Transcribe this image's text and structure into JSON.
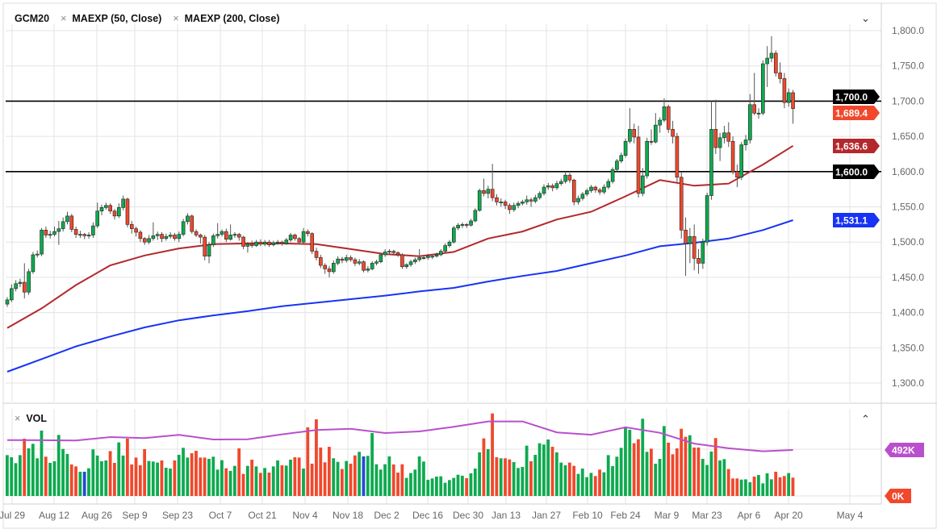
{
  "header": {
    "symbol": "GCM20",
    "studies": [
      "MAEXP (50, Close)",
      "MAEXP (200, Close)"
    ],
    "remove_icon": "close-x-icon",
    "collapse_icon": "chevron-down-icon"
  },
  "volume_pane": {
    "title": "VOL",
    "remove_icon": "close-x-icon",
    "collapse_icon": "chevron-up-icon"
  },
  "chart_data": {
    "type": "candlestick",
    "symbol": "GCM20",
    "x_tick_labels": [
      "Jul 29",
      "Aug 12",
      "Aug 26",
      "Sep 9",
      "Sep 23",
      "Oct 7",
      "Oct 21",
      "Nov 4",
      "Nov 18",
      "Dec 2",
      "Dec 16",
      "Dec 30",
      "Jan 13",
      "Jan 27",
      "Feb 10",
      "Feb 24",
      "Mar 9",
      "Mar 23",
      "Apr 6",
      "Apr 20",
      "May 4"
    ],
    "y_ticks": [
      1300,
      1350,
      1400,
      1450,
      1500,
      1550,
      1600,
      1650,
      1700,
      1750,
      1800
    ],
    "y_tick_labels": [
      "1,300.0",
      "1,350.0",
      "1,400.0",
      "1,450.0",
      "1,500.0",
      "1,550.0",
      "1,600.0",
      "1,650.0",
      "1,700.0",
      "1,750.0",
      "1,800.0"
    ],
    "ylim": [
      1270,
      1830
    ],
    "grid": true,
    "candles_format": [
      "open",
      "high",
      "low",
      "close"
    ],
    "candles": [
      [
        1412,
        1422,
        1408,
        1418
      ],
      [
        1418,
        1440,
        1415,
        1434
      ],
      [
        1434,
        1446,
        1430,
        1441
      ],
      [
        1441,
        1448,
        1436,
        1443
      ],
      [
        1443,
        1470,
        1420,
        1429
      ],
      [
        1429,
        1462,
        1425,
        1458
      ],
      [
        1458,
        1486,
        1455,
        1482
      ],
      [
        1482,
        1488,
        1478,
        1483
      ],
      [
        1483,
        1520,
        1480,
        1517
      ],
      [
        1517,
        1522,
        1506,
        1510
      ],
      [
        1510,
        1516,
        1505,
        1511
      ],
      [
        1511,
        1522,
        1508,
        1515
      ],
      [
        1515,
        1530,
        1496,
        1519
      ],
      [
        1519,
        1535,
        1515,
        1529
      ],
      [
        1529,
        1543,
        1525,
        1537
      ],
      [
        1537,
        1540,
        1514,
        1518
      ],
      [
        1518,
        1522,
        1506,
        1511
      ],
      [
        1511,
        1516,
        1506,
        1511
      ],
      [
        1511,
        1513,
        1504,
        1509
      ],
      [
        1509,
        1514,
        1505,
        1510
      ],
      [
        1510,
        1528,
        1506,
        1523
      ],
      [
        1523,
        1556,
        1520,
        1544
      ],
      [
        1544,
        1553,
        1538,
        1549
      ],
      [
        1549,
        1556,
        1546,
        1552
      ],
      [
        1552,
        1555,
        1540,
        1544
      ],
      [
        1544,
        1547,
        1532,
        1537
      ],
      [
        1537,
        1555,
        1534,
        1549
      ],
      [
        1549,
        1566,
        1545,
        1561
      ],
      [
        1561,
        1563,
        1521,
        1525
      ],
      [
        1525,
        1530,
        1512,
        1519
      ],
      [
        1519,
        1522,
        1508,
        1514
      ],
      [
        1514,
        1517,
        1500,
        1505
      ],
      [
        1505,
        1507,
        1496,
        1500
      ],
      [
        1500,
        1510,
        1497,
        1505
      ],
      [
        1505,
        1528,
        1502,
        1509
      ],
      [
        1509,
        1515,
        1503,
        1511
      ],
      [
        1511,
        1514,
        1500,
        1505
      ],
      [
        1505,
        1512,
        1502,
        1508
      ],
      [
        1508,
        1514,
        1505,
        1510
      ],
      [
        1510,
        1513,
        1502,
        1505
      ],
      [
        1505,
        1515,
        1500,
        1511
      ],
      [
        1511,
        1533,
        1508,
        1529
      ],
      [
        1529,
        1541,
        1525,
        1537
      ],
      [
        1537,
        1539,
        1512,
        1515
      ],
      [
        1515,
        1518,
        1507,
        1510
      ],
      [
        1510,
        1512,
        1498,
        1507
      ],
      [
        1507,
        1510,
        1474,
        1480
      ],
      [
        1480,
        1500,
        1470,
        1496
      ],
      [
        1496,
        1512,
        1493,
        1509
      ],
      [
        1509,
        1527,
        1505,
        1511
      ],
      [
        1511,
        1518,
        1508,
        1515
      ],
      [
        1515,
        1519,
        1500,
        1504
      ],
      [
        1504,
        1525,
        1502,
        1510
      ],
      [
        1510,
        1514,
        1506,
        1511
      ],
      [
        1511,
        1513,
        1502,
        1507
      ],
      [
        1507,
        1509,
        1490,
        1494
      ],
      [
        1494,
        1500,
        1485,
        1497
      ],
      [
        1497,
        1502,
        1492,
        1495
      ],
      [
        1495,
        1503,
        1493,
        1500
      ],
      [
        1500,
        1504,
        1494,
        1497
      ],
      [
        1497,
        1503,
        1494,
        1500
      ],
      [
        1500,
        1503,
        1493,
        1496
      ],
      [
        1496,
        1502,
        1494,
        1499
      ],
      [
        1499,
        1503,
        1496,
        1500
      ],
      [
        1500,
        1502,
        1495,
        1498
      ],
      [
        1498,
        1506,
        1496,
        1503
      ],
      [
        1503,
        1513,
        1500,
        1510
      ],
      [
        1510,
        1512,
        1502,
        1505
      ],
      [
        1505,
        1507,
        1497,
        1500
      ],
      [
        1500,
        1520,
        1498,
        1515
      ],
      [
        1515,
        1518,
        1508,
        1512
      ],
      [
        1512,
        1514,
        1483,
        1487
      ],
      [
        1487,
        1492,
        1474,
        1478
      ],
      [
        1478,
        1482,
        1463,
        1467
      ],
      [
        1467,
        1470,
        1455,
        1462
      ],
      [
        1462,
        1466,
        1450,
        1458
      ],
      [
        1458,
        1474,
        1455,
        1470
      ],
      [
        1470,
        1480,
        1467,
        1476
      ],
      [
        1476,
        1479,
        1470,
        1474
      ],
      [
        1474,
        1482,
        1471,
        1478
      ],
      [
        1478,
        1481,
        1472,
        1475
      ],
      [
        1475,
        1478,
        1466,
        1470
      ],
      [
        1470,
        1476,
        1467,
        1472
      ],
      [
        1472,
        1474,
        1457,
        1460
      ],
      [
        1460,
        1466,
        1457,
        1462
      ],
      [
        1462,
        1473,
        1460,
        1470
      ],
      [
        1470,
        1475,
        1467,
        1472
      ],
      [
        1472,
        1485,
        1470,
        1482
      ],
      [
        1482,
        1490,
        1479,
        1486
      ],
      [
        1486,
        1490,
        1483,
        1487
      ],
      [
        1487,
        1489,
        1481,
        1485
      ],
      [
        1485,
        1487,
        1479,
        1482
      ],
      [
        1482,
        1484,
        1462,
        1465
      ],
      [
        1465,
        1470,
        1462,
        1468
      ],
      [
        1468,
        1475,
        1465,
        1472
      ],
      [
        1472,
        1478,
        1469,
        1475
      ],
      [
        1475,
        1490,
        1472,
        1478
      ],
      [
        1478,
        1481,
        1475,
        1478
      ],
      [
        1478,
        1483,
        1475,
        1480
      ],
      [
        1480,
        1483,
        1476,
        1480
      ],
      [
        1480,
        1485,
        1478,
        1482
      ],
      [
        1482,
        1490,
        1480,
        1487
      ],
      [
        1487,
        1498,
        1485,
        1495
      ],
      [
        1495,
        1503,
        1492,
        1500
      ],
      [
        1500,
        1523,
        1498,
        1520
      ],
      [
        1520,
        1527,
        1517,
        1524
      ],
      [
        1524,
        1528,
        1520,
        1525
      ],
      [
        1525,
        1527,
        1520,
        1524
      ],
      [
        1524,
        1533,
        1522,
        1530
      ],
      [
        1530,
        1548,
        1528,
        1545
      ],
      [
        1545,
        1576,
        1543,
        1573
      ],
      [
        1573,
        1590,
        1565,
        1569
      ],
      [
        1569,
        1580,
        1562,
        1575
      ],
      [
        1575,
        1611,
        1558,
        1563
      ],
      [
        1563,
        1568,
        1552,
        1557
      ],
      [
        1557,
        1562,
        1550,
        1557
      ],
      [
        1557,
        1560,
        1547,
        1552
      ],
      [
        1552,
        1555,
        1540,
        1546
      ],
      [
        1546,
        1556,
        1543,
        1552
      ],
      [
        1552,
        1558,
        1548,
        1555
      ],
      [
        1555,
        1560,
        1552,
        1557
      ],
      [
        1557,
        1566,
        1553,
        1560
      ],
      [
        1560,
        1563,
        1550,
        1558
      ],
      [
        1558,
        1567,
        1555,
        1563
      ],
      [
        1563,
        1572,
        1560,
        1569
      ],
      [
        1569,
        1582,
        1566,
        1578
      ],
      [
        1578,
        1584,
        1574,
        1580
      ],
      [
        1580,
        1583,
        1572,
        1577
      ],
      [
        1577,
        1587,
        1574,
        1583
      ],
      [
        1583,
        1590,
        1580,
        1586
      ],
      [
        1586,
        1600,
        1583,
        1595
      ],
      [
        1595,
        1598,
        1584,
        1588
      ],
      [
        1588,
        1590,
        1552,
        1557
      ],
      [
        1557,
        1566,
        1553,
        1562
      ],
      [
        1562,
        1571,
        1559,
        1568
      ],
      [
        1568,
        1576,
        1565,
        1573
      ],
      [
        1573,
        1581,
        1570,
        1578
      ],
      [
        1578,
        1580,
        1570,
        1574
      ],
      [
        1574,
        1577,
        1567,
        1571
      ],
      [
        1571,
        1582,
        1568,
        1578
      ],
      [
        1578,
        1590,
        1575,
        1586
      ],
      [
        1586,
        1606,
        1583,
        1603
      ],
      [
        1603,
        1618,
        1600,
        1615
      ],
      [
        1615,
        1627,
        1612,
        1623
      ],
      [
        1623,
        1647,
        1620,
        1643
      ],
      [
        1643,
        1690,
        1640,
        1660
      ],
      [
        1660,
        1668,
        1640,
        1649
      ],
      [
        1649,
        1665,
        1563,
        1569
      ],
      [
        1569,
        1605,
        1565,
        1594
      ],
      [
        1594,
        1648,
        1590,
        1643
      ],
      [
        1643,
        1660,
        1638,
        1642
      ],
      [
        1642,
        1683,
        1640,
        1666
      ],
      [
        1666,
        1677,
        1655,
        1673
      ],
      [
        1673,
        1704,
        1670,
        1692
      ],
      [
        1692,
        1695,
        1655,
        1660
      ],
      [
        1660,
        1672,
        1640,
        1650
      ],
      [
        1650,
        1655,
        1585,
        1592
      ],
      [
        1592,
        1600,
        1505,
        1517
      ],
      [
        1517,
        1535,
        1452,
        1498
      ],
      [
        1498,
        1520,
        1470,
        1508
      ],
      [
        1508,
        1525,
        1460,
        1477
      ],
      [
        1477,
        1490,
        1455,
        1470
      ],
      [
        1470,
        1505,
        1462,
        1500
      ],
      [
        1500,
        1570,
        1495,
        1566
      ],
      [
        1566,
        1700,
        1560,
        1660
      ],
      [
        1660,
        1702,
        1625,
        1634
      ],
      [
        1634,
        1655,
        1615,
        1648
      ],
      [
        1648,
        1665,
        1640,
        1655
      ],
      [
        1655,
        1670,
        1635,
        1643
      ],
      [
        1643,
        1650,
        1596,
        1600
      ],
      [
        1600,
        1610,
        1578,
        1592
      ],
      [
        1592,
        1642,
        1588,
        1638
      ],
      [
        1638,
        1652,
        1630,
        1645
      ],
      [
        1645,
        1710,
        1640,
        1695
      ],
      [
        1695,
        1740,
        1680,
        1683
      ],
      [
        1683,
        1690,
        1675,
        1683
      ],
      [
        1683,
        1758,
        1680,
        1753
      ],
      [
        1753,
        1778,
        1720,
        1761
      ],
      [
        1761,
        1792,
        1755,
        1768
      ],
      [
        1768,
        1772,
        1735,
        1740
      ],
      [
        1740,
        1755,
        1725,
        1732
      ],
      [
        1732,
        1740,
        1690,
        1698
      ],
      [
        1698,
        1718,
        1692,
        1712
      ],
      [
        1712,
        1716,
        1668,
        1689.4
      ]
    ],
    "ma50": {
      "name": "MAEXP (50, Close)",
      "values": [
        1378,
        1406,
        1439,
        1467,
        1481,
        1491,
        1497,
        1498,
        1498,
        1497,
        1490,
        1483,
        1480,
        1486,
        1505,
        1515,
        1532,
        1543,
        1565,
        1588,
        1580,
        1583,
        1610,
        1636.6
      ]
    },
    "ma200": {
      "name": "MAEXP (200, Close)",
      "values": [
        1316,
        1334,
        1352,
        1366,
        1379,
        1389,
        1396,
        1402,
        1409,
        1414,
        1419,
        1424,
        1430,
        1435,
        1444,
        1452,
        1459,
        1470,
        1481,
        1494,
        1499,
        1505,
        1517,
        1531.1
      ]
    },
    "horizontal_lines": [
      1700,
      1600
    ],
    "price_labels": [
      {
        "text": "1,700.0",
        "value": 1700,
        "color": "#000000"
      },
      {
        "text": "1,689.4",
        "value": 1689.4,
        "color": "#f2472b"
      },
      {
        "text": "1,636.6",
        "value": 1636.6,
        "color": "#b3282c"
      },
      {
        "text": "1,600.0",
        "value": 1600,
        "color": "#000000"
      },
      {
        "text": "1,531.1",
        "value": 1531.1,
        "color": "#1733f5"
      }
    ],
    "volume": {
      "unit": "K",
      "values": [
        437,
        414,
        351,
        437,
        613,
        509,
        558,
        403,
        699,
        420,
        354,
        371,
        653,
        503,
        449,
        337,
        316,
        259,
        259,
        296,
        498,
        432,
        371,
        380,
        480,
        354,
        573,
        432,
        613,
        337,
        411,
        328,
        501,
        374,
        368,
        357,
        380,
        302,
        293,
        380,
        440,
        515,
        411,
        457,
        483,
        411,
        411,
        397,
        420,
        282,
        383,
        296,
        268,
        322,
        509,
        236,
        322,
        388,
        316,
        247,
        299,
        250,
        316,
        380,
        328,
        325,
        388,
        414,
        411,
        293,
        734,
        345,
        820,
        518,
        360,
        526,
        403,
        365,
        288,
        374,
        345,
        434,
        472,
        423,
        429,
        673,
        339,
        282,
        339,
        423,
        337,
        250,
        339,
        193,
        245,
        282,
        423,
        368,
        173,
        187,
        207,
        210,
        141,
        170,
        193,
        227,
        216,
        190,
        242,
        293,
        466,
        616,
        501,
        883,
        414,
        403,
        403,
        391,
        362,
        299,
        311,
        538,
        371,
        440,
        564,
        550,
        604,
        526,
        466,
        357,
        328,
        357,
        322,
        236,
        293,
        201,
        247,
        213,
        282,
        253,
        437,
        319,
        420,
        515,
        742,
        708,
        564,
        607,
        826,
        472,
        506,
        345,
        397,
        748,
        570,
        446,
        509,
        719,
        633,
        650,
        518,
        518,
        397,
        331,
        475,
        619,
        380,
        394,
        288,
        187,
        187,
        175,
        178,
        147,
        207,
        224,
        135,
        242,
        178,
        259,
        199,
        213,
        245,
        196
      ],
      "neutral_indices": [
        18,
        83
      ],
      "ma": {
        "values": [
          598,
          596,
          593,
          630,
          620,
          653,
          604,
          607,
          659,
          705,
          719,
          673,
          690,
          740,
          797,
          797,
          680,
          655,
          734,
          676,
          560,
          510,
          478,
          492
        ]
      },
      "axis_labels": [
        {
          "text": "492K",
          "value": 492,
          "color": "#b94fcd"
        },
        {
          "text": "0K",
          "value": 0,
          "color": "#f2472b"
        }
      ]
    },
    "colors": {
      "up": "#0eaa4f",
      "down": "#f0482c",
      "neutral_volume": "#2448d8",
      "ma50": "#b3282c",
      "ma200": "#1733f5",
      "volume_ma": "#b94fcd",
      "level_line": "#000000",
      "grid": "#e3e3e3"
    }
  }
}
